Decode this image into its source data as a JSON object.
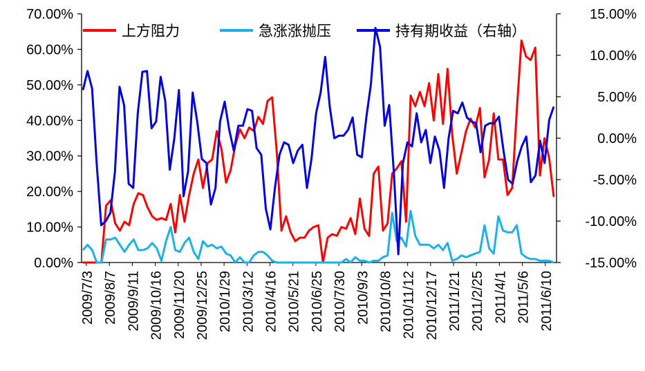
{
  "chart_data": {
    "type": "line",
    "title": "",
    "legend_position": "top",
    "grid": false,
    "y_left": {
      "ylim": [
        0,
        70
      ],
      "ticks": [
        "0.00%",
        "10.00%",
        "20.00%",
        "30.00%",
        "40.00%",
        "50.00%",
        "60.00%",
        "70.00%"
      ]
    },
    "y_right": {
      "ylim": [
        -15,
        15
      ],
      "ticks": [
        "-15.00%",
        "-10.00%",
        "-5.00%",
        "0.00%",
        "5.00%",
        "10.00%",
        "15.00%"
      ]
    },
    "x_tick_labels": [
      "2009/7/3",
      "2009/8/7",
      "2009/9/11",
      "2009/10/16",
      "2009/11/20",
      "2009/12/25",
      "2010/1/29",
      "2010/3/12",
      "2010/4/16",
      "2010/5/21",
      "2010/6/25",
      "2010/7/30",
      "2010/9/3",
      "2010/10/8",
      "2010/11/12",
      "2010/12/17",
      "2011/1/21",
      "2011/2/25",
      "2011/4/1",
      "2011/5/6",
      "2011/6/10"
    ],
    "series": [
      {
        "name": "上方阻力",
        "axis": "left",
        "color": "#ff0000",
        "values": [
          0,
          0,
          0,
          0,
          0,
          16,
          17.5,
          11,
          9,
          11.5,
          10.5,
          16.5,
          19.5,
          19,
          15.5,
          13,
          12,
          12.5,
          12,
          16.5,
          8.5,
          19,
          11.5,
          19,
          25,
          29,
          21,
          28,
          29,
          37,
          32,
          22.5,
          26,
          33,
          37.5,
          35,
          38,
          37,
          41,
          39,
          45.5,
          46.5,
          31,
          9,
          13,
          8.5,
          6,
          7,
          7,
          9,
          10,
          10.5,
          0,
          7,
          8,
          7.5,
          10,
          9.5,
          12.5,
          8,
          18,
          9.5,
          7.5,
          25,
          27,
          9,
          11,
          25,
          26.5,
          28.5,
          11.5,
          47,
          44,
          48,
          44,
          50.5,
          40,
          53,
          39,
          54.5,
          36,
          25,
          31,
          37,
          40.5,
          38,
          43.5,
          24,
          29,
          42,
          29,
          29,
          19,
          21,
          43,
          62.5,
          58,
          57,
          60.5,
          24.5,
          35,
          29.5,
          18.5
        ]
      },
      {
        "name": "急涨涨抛压",
        "axis": "left",
        "color": "#1ab0e8",
        "values": [
          3.5,
          5,
          3.5,
          0,
          0,
          6.5,
          6.5,
          7,
          5,
          3,
          5,
          6.5,
          3.5,
          3.5,
          4,
          5.5,
          4,
          0.5,
          6,
          10,
          3.5,
          3,
          5.5,
          7,
          3,
          1,
          6,
          4.5,
          5,
          4,
          4.5,
          2.5,
          2,
          0,
          1.5,
          0,
          0,
          2,
          3,
          3,
          2,
          0.5,
          0,
          0,
          0,
          0,
          0,
          0,
          0,
          0,
          0,
          0,
          0,
          0,
          0,
          0,
          0,
          1,
          0,
          1.5,
          0.5,
          0.5,
          0,
          0.5,
          0.5,
          1.5,
          2,
          14,
          6,
          7,
          4.5,
          14.5,
          7.5,
          5,
          5,
          5,
          4,
          5,
          3.5,
          5.5,
          0.5,
          1,
          2,
          1.5,
          2,
          2.5,
          3,
          10.5,
          4,
          2.5,
          13,
          9,
          8.5,
          8.5,
          10.5,
          2.5,
          1.5,
          1,
          1,
          0.5,
          0.5,
          0.5,
          0
        ]
      },
      {
        "name": "持有期收益（右轴）",
        "axis": "right",
        "color": "#0000e0",
        "values": [
          5.8,
          8.1,
          6,
          -3,
          -10.5,
          -10,
          -9,
          -4,
          6.2,
          4,
          -5.5,
          -6,
          3,
          8,
          8.1,
          1.2,
          2,
          7.4,
          4.5,
          -3.8,
          0,
          5.8,
          -7,
          -4,
          5.5,
          2,
          -2.5,
          -3,
          -8,
          -6,
          2,
          4.4,
          1,
          -1.5,
          1.5,
          1.5,
          3.5,
          3.3,
          -1.2,
          -2,
          -8.5,
          -11,
          -6,
          -2,
          -0.5,
          -0.8,
          -3,
          -1.5,
          -0.8,
          -6,
          -2.5,
          3,
          5.5,
          9.8,
          3.8,
          0,
          0.3,
          0.3,
          1,
          2.5,
          -2,
          -2.3,
          2.5,
          6.5,
          13.3,
          11,
          1.5,
          4,
          -4,
          -14,
          -3,
          -0.5,
          -1,
          3,
          -0.5,
          1,
          -3,
          0.2,
          -1.5,
          -6,
          0,
          3.3,
          3,
          4.3,
          2.5,
          2,
          1.8,
          -1.7,
          1.5,
          1.8,
          1.8,
          2.6,
          -1.5,
          -5,
          -5.5,
          -2.8,
          -1,
          0.2,
          -5.3,
          -4.5,
          -0.3,
          -3,
          2.2,
          3.8
        ]
      }
    ]
  }
}
